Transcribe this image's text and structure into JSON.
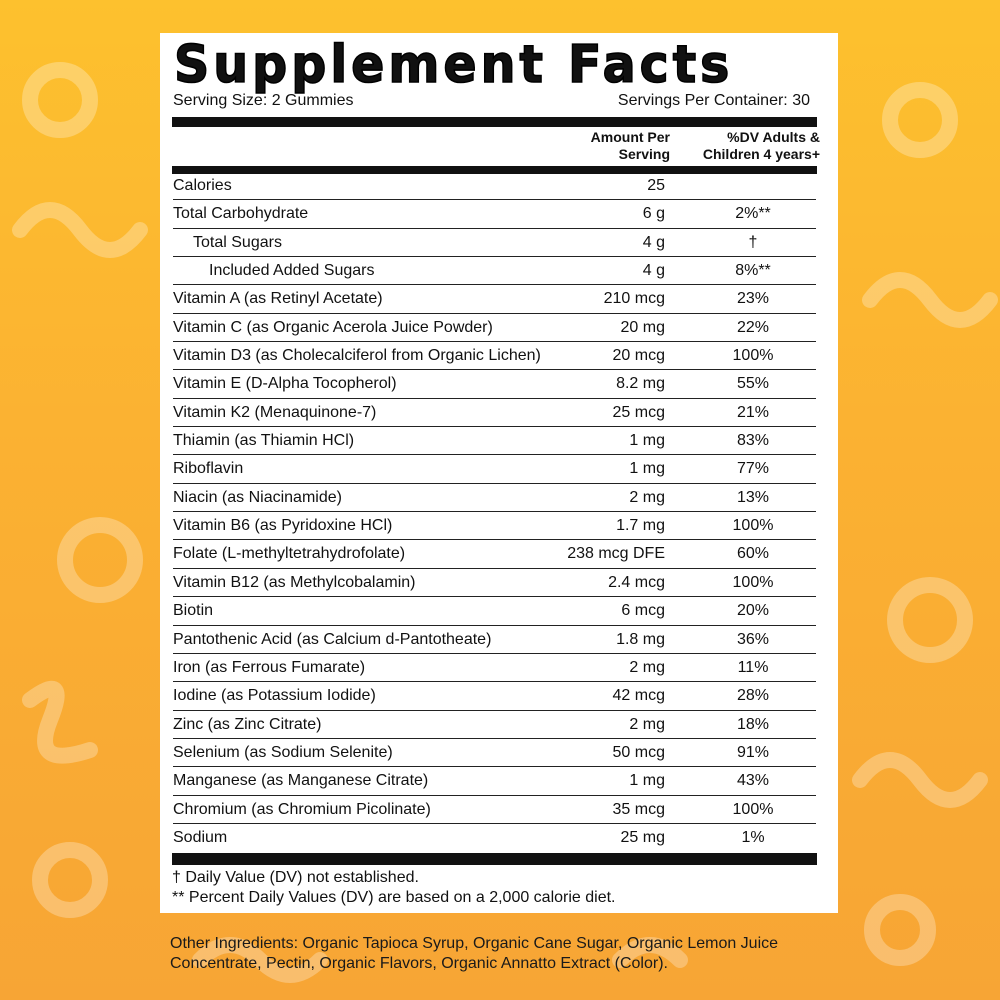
{
  "label": {
    "title": "Supplement Facts",
    "serving_size": "Serving Size: 2 Gummies",
    "servings_per_container": "Servings Per Container: 30",
    "col_amount_line1": "Amount Per",
    "col_amount_line2": "Serving",
    "col_dv_line1": "%DV Adults &",
    "col_dv_line2": "Children 4 years+",
    "rows": [
      {
        "name": "Calories",
        "amount": "25",
        "dv": "",
        "indent": 0
      },
      {
        "name": "Total Carbohydrate",
        "amount": "6 g",
        "dv": "2%**",
        "indent": 0
      },
      {
        "name": "Total Sugars",
        "amount": "4 g",
        "dv": "†",
        "indent": 1
      },
      {
        "name": "Included Added Sugars",
        "amount": "4 g",
        "dv": "8%**",
        "indent": 2
      },
      {
        "name": "Vitamin A (as Retinyl Acetate)",
        "amount": "210 mcg",
        "dv": "23%",
        "indent": 0
      },
      {
        "name": "Vitamin C (as Organic Acerola Juice Powder)",
        "amount": "20 mg",
        "dv": "22%",
        "indent": 0
      },
      {
        "name": "Vitamin D3 (as Cholecalciferol from Organic Lichen)",
        "amount": "20 mcg",
        "dv": "100%",
        "indent": 0
      },
      {
        "name": "Vitamin E (D-Alpha Tocopherol)",
        "amount": "8.2 mg",
        "dv": "55%",
        "indent": 0
      },
      {
        "name": "Vitamin K2 (Menaquinone-7)",
        "amount": "25 mcg",
        "dv": "21%",
        "indent": 0
      },
      {
        "name": "Thiamin (as Thiamin HCl)",
        "amount": "1 mg",
        "dv": "83%",
        "indent": 0
      },
      {
        "name": "Riboflavin",
        "amount": "1 mg",
        "dv": "77%",
        "indent": 0
      },
      {
        "name": "Niacin (as Niacinamide)",
        "amount": "2 mg",
        "dv": "13%",
        "indent": 0
      },
      {
        "name": "Vitamin B6 (as Pyridoxine HCl)",
        "amount": "1.7 mg",
        "dv": "100%",
        "indent": 0
      },
      {
        "name": "Folate (L-methyltetrahydrofolate)",
        "amount": "238 mcg DFE",
        "dv": "60%",
        "indent": 0
      },
      {
        "name": "Vitamin B12 (as Methylcobalamin)",
        "amount": "2.4 mcg",
        "dv": "100%",
        "indent": 0
      },
      {
        "name": "Biotin",
        "amount": "6 mcg",
        "dv": "20%",
        "indent": 0
      },
      {
        "name": "Pantothenic Acid (as Calcium d-Pantotheate)",
        "amount": "1.8 mg",
        "dv": "36%",
        "indent": 0
      },
      {
        "name": "Iron (as Ferrous Fumarate)",
        "amount": "2 mg",
        "dv": "11%",
        "indent": 0
      },
      {
        "name": "Iodine (as Potassium Iodide)",
        "amount": "42 mcg",
        "dv": "28%",
        "indent": 0
      },
      {
        "name": "Zinc (as Zinc Citrate)",
        "amount": "2 mg",
        "dv": "18%",
        "indent": 0
      },
      {
        "name": "Selenium (as Sodium Selenite)",
        "amount": "50 mcg",
        "dv": "91%",
        "indent": 0
      },
      {
        "name": "Manganese (as Manganese Citrate)",
        "amount": "1 mg",
        "dv": "43%",
        "indent": 0
      },
      {
        "name": "Chromium (as Chromium Picolinate)",
        "amount": "35 mcg",
        "dv": "100%",
        "indent": 0
      },
      {
        "name": "Sodium",
        "amount": "25 mg",
        "dv": "1%",
        "indent": 0
      }
    ],
    "footnote_dagger": "† Daily Value (DV) not established.",
    "footnote_stars": "** Percent Daily Values (DV) are based on a 2,000 calorie diet."
  },
  "other_ingredients": "Other Ingredients: Organic Tapioca Syrup, Organic Cane Sugar, Organic Lemon Juice Concentrate, Pectin, Organic Flavors, Organic Annatto Extract (Color).",
  "colors": {
    "background_top": "#fdc12e",
    "background_bottom": "#f7a535",
    "panel": "#ffffff",
    "text": "#111111"
  }
}
